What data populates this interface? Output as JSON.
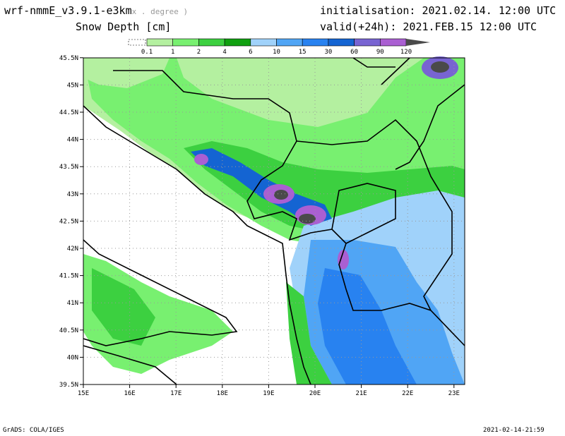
{
  "header": {
    "model": "wrf-nmmE_v3.9.1-e3km",
    "units_hint": "x . degree )",
    "variable": "Snow Depth [cm]",
    "init": "initialisation: 2021.02.14.  12:00 UTC",
    "valid": "valid(+24h): 2021.FEB.15 12:00 UTC"
  },
  "legend": {
    "levels": [
      "0.1",
      "1",
      "2",
      "4",
      "6",
      "10",
      "15",
      "30",
      "60",
      "90",
      "120"
    ],
    "colors": [
      "#b4f0a0",
      "#78f070",
      "#3cd040",
      "#10a010",
      "#a0d2fa",
      "#50a5f5",
      "#2882f0",
      "#1464d2",
      "#7864d2",
      "#aa5fd2",
      "#4a4a4a"
    ]
  },
  "axes": {
    "lon_labels": [
      "15E",
      "16E",
      "17E",
      "18E",
      "19E",
      "20E",
      "21E",
      "22E",
      "23E"
    ],
    "lat_labels": [
      "45.5N",
      "45N",
      "44.5N",
      "44N",
      "43.5N",
      "43N",
      "42.5N",
      "42N",
      "41.5N",
      "41N",
      "40.5N",
      "40N",
      "39.5N"
    ],
    "lon_range": [
      15,
      23.25
    ],
    "lat_range": [
      39.5,
      45.5
    ]
  },
  "footer": {
    "left": "GrADS: COLA/IGES",
    "right": "2021-02-14-21:59"
  }
}
